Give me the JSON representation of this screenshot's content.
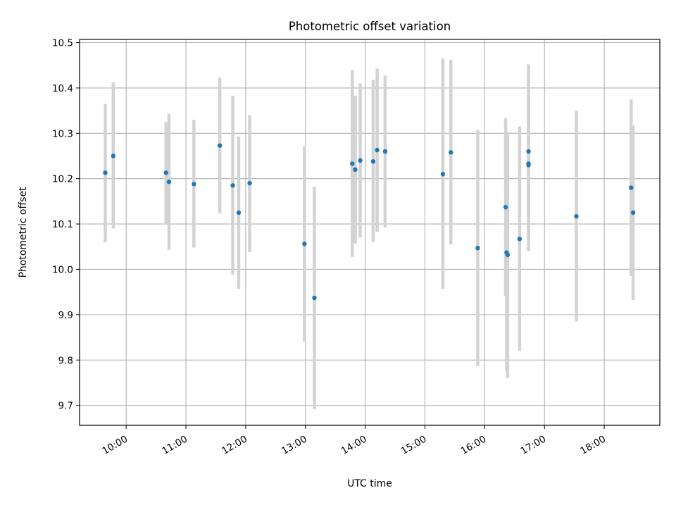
{
  "chart_data": {
    "type": "scatter",
    "title": "Photometric offset variation",
    "xlabel": "UTC time",
    "ylabel": "Photometric offset",
    "x_ticks": [
      "10:00",
      "11:00",
      "12:00",
      "13:00",
      "14:00",
      "15:00",
      "16:00",
      "17:00",
      "18:00"
    ],
    "x_tick_hours": [
      10,
      11,
      12,
      13,
      14,
      15,
      16,
      17,
      18
    ],
    "xlim_hours": [
      9.22,
      18.93
    ],
    "y_ticks": [
      "9.7",
      "9.8",
      "9.9",
      "10.0",
      "10.1",
      "10.2",
      "10.3",
      "10.4",
      "10.5"
    ],
    "ylim": [
      9.656,
      10.507
    ],
    "grid": true,
    "colors": {
      "point": "#1f77b4",
      "errorbar": "#d3d3d3",
      "grid": "#b0b0b0"
    },
    "points": [
      {
        "time": "09:39",
        "y": 10.213,
        "ylow": 10.06,
        "yhigh": 10.365
      },
      {
        "time": "09:47",
        "y": 10.25,
        "ylow": 10.09,
        "yhigh": 10.412
      },
      {
        "time": "10:40",
        "y": 10.213,
        "ylow": 10.1,
        "yhigh": 10.325
      },
      {
        "time": "10:43",
        "y": 10.193,
        "ylow": 10.043,
        "yhigh": 10.343
      },
      {
        "time": "11:08",
        "y": 10.188,
        "ylow": 10.048,
        "yhigh": 10.33
      },
      {
        "time": "11:34",
        "y": 10.273,
        "ylow": 10.123,
        "yhigh": 10.423
      },
      {
        "time": "11:47",
        "y": 10.185,
        "ylow": 9.988,
        "yhigh": 10.383
      },
      {
        "time": "11:53",
        "y": 10.125,
        "ylow": 9.957,
        "yhigh": 10.293
      },
      {
        "time": "12:04",
        "y": 10.19,
        "ylow": 10.038,
        "yhigh": 10.34
      },
      {
        "time": "12:59",
        "y": 10.056,
        "ylow": 9.84,
        "yhigh": 10.272
      },
      {
        "time": "13:09",
        "y": 9.937,
        "ylow": 9.692,
        "yhigh": 10.182
      },
      {
        "time": "13:47",
        "y": 10.233,
        "ylow": 10.027,
        "yhigh": 10.44
      },
      {
        "time": "13:50",
        "y": 10.22,
        "ylow": 10.057,
        "yhigh": 10.383
      },
      {
        "time": "13:55",
        "y": 10.24,
        "ylow": 10.07,
        "yhigh": 10.41
      },
      {
        "time": "14:08",
        "y": 10.238,
        "ylow": 10.06,
        "yhigh": 10.418
      },
      {
        "time": "14:12",
        "y": 10.263,
        "ylow": 10.083,
        "yhigh": 10.443
      },
      {
        "time": "14:20",
        "y": 10.26,
        "ylow": 10.093,
        "yhigh": 10.427
      },
      {
        "time": "15:18",
        "y": 10.21,
        "ylow": 9.957,
        "yhigh": 10.465
      },
      {
        "time": "15:26",
        "y": 10.258,
        "ylow": 10.055,
        "yhigh": 10.462
      },
      {
        "time": "15:53",
        "y": 10.047,
        "ylow": 9.787,
        "yhigh": 10.307
      },
      {
        "time": "16:21",
        "y": 10.137,
        "ylow": 9.942,
        "yhigh": 10.333
      },
      {
        "time": "16:22",
        "y": 10.037,
        "ylow": 9.775,
        "yhigh": 10.298
      },
      {
        "time": "16:23",
        "y": 10.032,
        "ylow": 9.76,
        "yhigh": 10.303
      },
      {
        "time": "16:35",
        "y": 10.067,
        "ylow": 9.82,
        "yhigh": 10.315
      },
      {
        "time": "16:44",
        "y": 10.26,
        "ylow": 10.067,
        "yhigh": 10.452
      },
      {
        "time": "16:44",
        "y": 10.233,
        "ylow": 10.04,
        "yhigh": 10.425
      },
      {
        "time": "16:44",
        "y": 10.23,
        "ylow": 10.04,
        "yhigh": 10.42
      },
      {
        "time": "17:32",
        "y": 10.117,
        "ylow": 9.885,
        "yhigh": 10.35
      },
      {
        "time": "18:27",
        "y": 10.18,
        "ylow": 9.985,
        "yhigh": 10.375
      },
      {
        "time": "18:29",
        "y": 10.125,
        "ylow": 9.932,
        "yhigh": 10.317
      }
    ]
  }
}
